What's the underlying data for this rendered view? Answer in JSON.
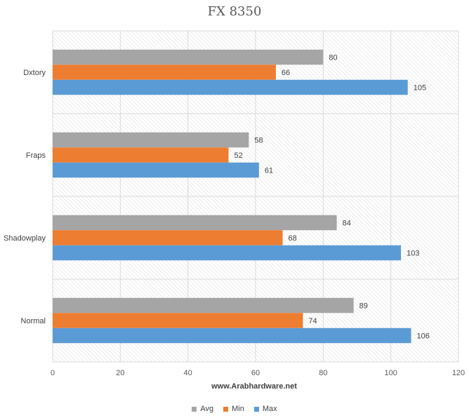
{
  "chart_data": {
    "type": "bar",
    "orientation": "horizontal",
    "title": "FX 8350",
    "xlabel": "www.Arabhardware.net",
    "ylabel": "",
    "categories": [
      "Dxtory",
      "Fraps",
      "Shadowplay",
      "Normal"
    ],
    "series": [
      {
        "name": "Avg",
        "color": "#a5a5a5",
        "values": [
          80,
          58,
          84,
          89
        ]
      },
      {
        "name": "Min",
        "color": "#ed7d31",
        "values": [
          66,
          52,
          68,
          74
        ]
      },
      {
        "name": "Max",
        "color": "#5b9bd5",
        "values": [
          105,
          61,
          103,
          106
        ]
      }
    ],
    "xlim": [
      0,
      120
    ],
    "xticks": [
      0,
      20,
      40,
      60,
      80,
      100,
      120
    ],
    "grid": true,
    "plot_background": "diagonal hatch",
    "data_labels": true,
    "legend": "bottom"
  }
}
